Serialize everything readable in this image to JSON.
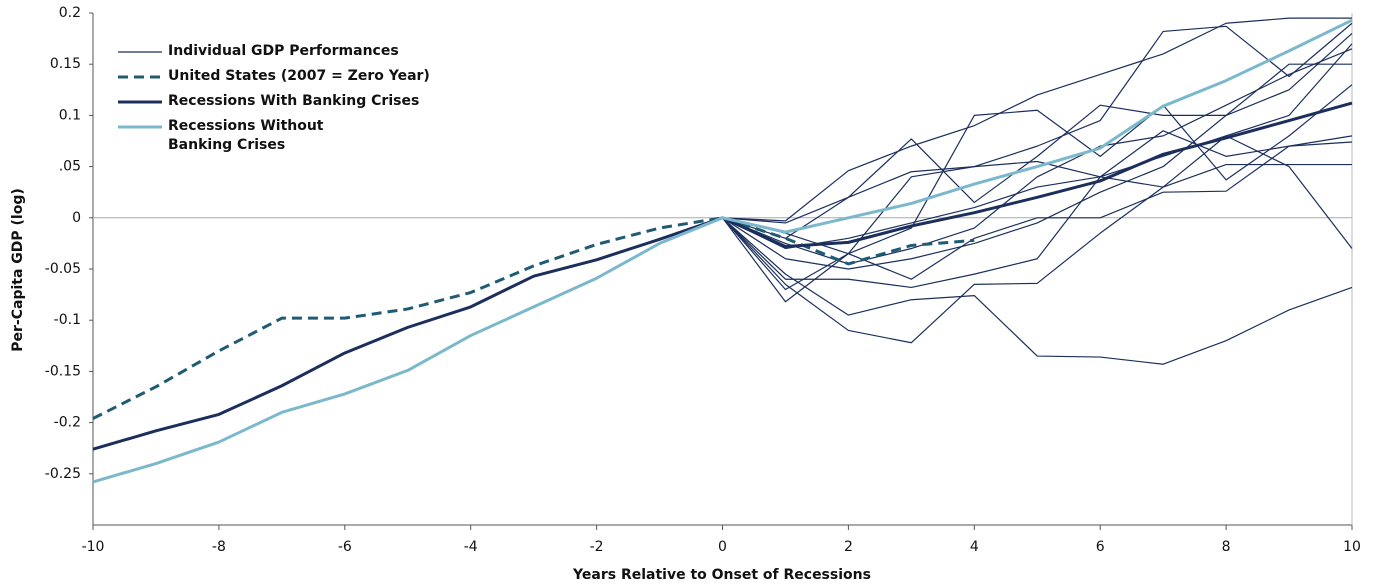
{
  "chart_data": {
    "type": "line",
    "y_label": "Per-Capita GDP (log)",
    "x_label": "Years Relative to Onset of Recessions",
    "x": [
      -10,
      -9,
      -8,
      -7,
      -6,
      -5,
      -4,
      -3,
      -2,
      -1,
      0,
      1,
      2,
      3,
      4,
      5,
      6,
      7,
      8,
      9,
      10
    ],
    "xlim": [
      -10,
      10
    ],
    "xticks": [
      -10,
      -8,
      -6,
      -4,
      -2,
      0,
      2,
      4,
      6,
      8,
      10
    ],
    "ylim": [
      -0.3,
      0.2
    ],
    "yticks": [
      0.2,
      0.15,
      0.1,
      {
        "value": 0.05,
        "label": ".05"
      },
      0,
      -0.05,
      -0.1,
      -0.15,
      -0.2,
      -0.25
    ],
    "legend": "upper left",
    "series": [
      {
        "name": "Individual GDP Performances",
        "color": "#1c2f5c",
        "lines": [
          [
            null,
            null,
            null,
            null,
            null,
            null,
            null,
            null,
            null,
            null,
            0,
            -0.003,
            0.046,
            0.07,
            0.09,
            0.12,
            0.14,
            0.16,
            0.19,
            0.195,
            0.195
          ],
          [
            null,
            null,
            null,
            null,
            null,
            null,
            null,
            null,
            null,
            null,
            0,
            -0.02,
            0.02,
            0.077,
            0.015,
            0.06,
            0.11,
            0.1,
            0.1,
            0.15,
            0.15
          ],
          [
            null,
            null,
            null,
            null,
            null,
            null,
            null,
            null,
            null,
            null,
            0,
            -0.07,
            -0.035,
            0.04,
            0.05,
            0.07,
            0.095,
            0.182,
            0.187,
            0.138,
            0.19
          ],
          [
            null,
            null,
            null,
            null,
            null,
            null,
            null,
            null,
            null,
            null,
            0,
            -0.082,
            -0.035,
            -0.01,
            0.1,
            0.105,
            0.06,
            0.11,
            0.037,
            0.08,
            0.13
          ],
          [
            null,
            null,
            null,
            null,
            null,
            null,
            null,
            null,
            null,
            null,
            0,
            -0.06,
            -0.06,
            -0.068,
            -0.055,
            -0.04,
            0.04,
            0.03,
            0.08,
            0.05,
            -0.03
          ],
          [
            null,
            null,
            null,
            null,
            null,
            null,
            null,
            null,
            null,
            null,
            0,
            -0.065,
            -0.11,
            -0.122,
            -0.065,
            -0.064,
            -0.015,
            0.03,
            0.052,
            0.052,
            0.052
          ],
          [
            null,
            null,
            null,
            null,
            null,
            null,
            null,
            null,
            null,
            null,
            0,
            -0.055,
            -0.095,
            -0.08,
            -0.076,
            -0.135,
            -0.136,
            -0.143,
            -0.12,
            -0.09,
            -0.068
          ],
          [
            null,
            null,
            null,
            null,
            null,
            null,
            null,
            null,
            null,
            null,
            0,
            -0.015,
            -0.035,
            -0.06,
            -0.02,
            0,
            0,
            0.025,
            0.026,
            0.07,
            0.08
          ],
          [
            null,
            null,
            null,
            null,
            null,
            null,
            null,
            null,
            null,
            null,
            0,
            -0.005,
            0.02,
            0.045,
            0.05,
            0.055,
            0.04,
            0.085,
            0.06,
            0.07,
            0.074
          ],
          [
            null,
            null,
            null,
            null,
            null,
            null,
            null,
            null,
            null,
            null,
            0,
            -0.03,
            -0.02,
            -0.005,
            0.01,
            0.03,
            0.04,
            0.06,
            0.08,
            0.1,
            0.17
          ],
          [
            null,
            null,
            null,
            null,
            null,
            null,
            null,
            null,
            null,
            null,
            0,
            -0.04,
            -0.05,
            -0.04,
            -0.025,
            -0.005,
            0.025,
            0.05,
            0.1,
            0.125,
            0.18
          ],
          [
            null,
            null,
            null,
            null,
            null,
            null,
            null,
            null,
            null,
            null,
            0,
            -0.025,
            -0.045,
            -0.03,
            -0.01,
            0.04,
            0.07,
            0.08,
            0.11,
            0.14,
            0.165
          ]
        ]
      },
      {
        "name": "United States (2007 = Zero Year)",
        "color": "#1f5b73",
        "dashed": true,
        "values": [
          -0.196,
          -0.165,
          -0.13,
          -0.098,
          -0.098,
          -0.089,
          -0.073,
          -0.047,
          -0.026,
          -0.01,
          0,
          -0.02,
          -0.045,
          -0.027,
          -0.022,
          null,
          null,
          null,
          null,
          null,
          null
        ]
      },
      {
        "name": "Recessions With Banking Crises",
        "color": "#1c2f5c",
        "bold": true,
        "values": [
          -0.226,
          -0.208,
          -0.192,
          -0.164,
          -0.132,
          -0.107,
          -0.087,
          -0.057,
          -0.041,
          -0.021,
          0,
          -0.028,
          -0.024,
          -0.008,
          0.005,
          0.02,
          0.036,
          0.062,
          0.078,
          0.095,
          0.112
        ]
      },
      {
        "name": "Recessions Without\nBanking Crises",
        "color": "#7bb8cc",
        "bold": true,
        "values": [
          -0.258,
          -0.24,
          -0.219,
          -0.19,
          -0.172,
          -0.149,
          -0.115,
          -0.087,
          -0.059,
          -0.025,
          0,
          -0.014,
          0,
          0.014,
          0.033,
          0.05,
          0.068,
          0.109,
          0.134,
          0.163,
          0.193
        ]
      }
    ]
  }
}
